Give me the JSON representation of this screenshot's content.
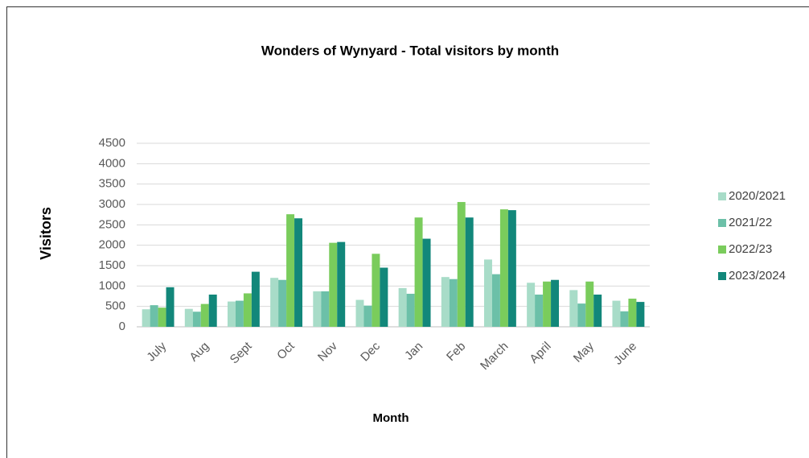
{
  "chart_data": {
    "type": "bar",
    "title": "Wonders of Wynyard - Total visitors by month",
    "x_label": "Month",
    "y_label": "Visitors",
    "categories": [
      "July",
      "Aug",
      "Sept",
      "Oct",
      "Nov",
      "Dec",
      "Jan",
      "Feb",
      "March",
      "April",
      "May",
      "June"
    ],
    "series": [
      {
        "name": "2020/2021",
        "color": "#a8dcc8",
        "values": [
          430,
          440,
          620,
          1200,
          870,
          660,
          950,
          1220,
          1650,
          1080,
          900,
          640
        ]
      },
      {
        "name": "2021/22",
        "color": "#6cc0a8",
        "values": [
          530,
          370,
          640,
          1150,
          870,
          520,
          810,
          1170,
          1290,
          790,
          570,
          380
        ]
      },
      {
        "name": "2022/23",
        "color": "#7acc5c",
        "values": [
          470,
          560,
          820,
          2760,
          2060,
          1790,
          2680,
          3060,
          2880,
          1110,
          1110,
          690
        ]
      },
      {
        "name": "2023/2024",
        "color": "#12877a",
        "values": [
          970,
          790,
          1350,
          2660,
          2080,
          1450,
          2160,
          2680,
          2860,
          1150,
          790,
          610
        ]
      }
    ],
    "ylim": [
      0,
      4500
    ],
    "yticks": [
      0,
      500,
      1000,
      1500,
      2000,
      2500,
      3000,
      3500,
      4000,
      4500
    ],
    "grid": true,
    "legend": "right"
  }
}
